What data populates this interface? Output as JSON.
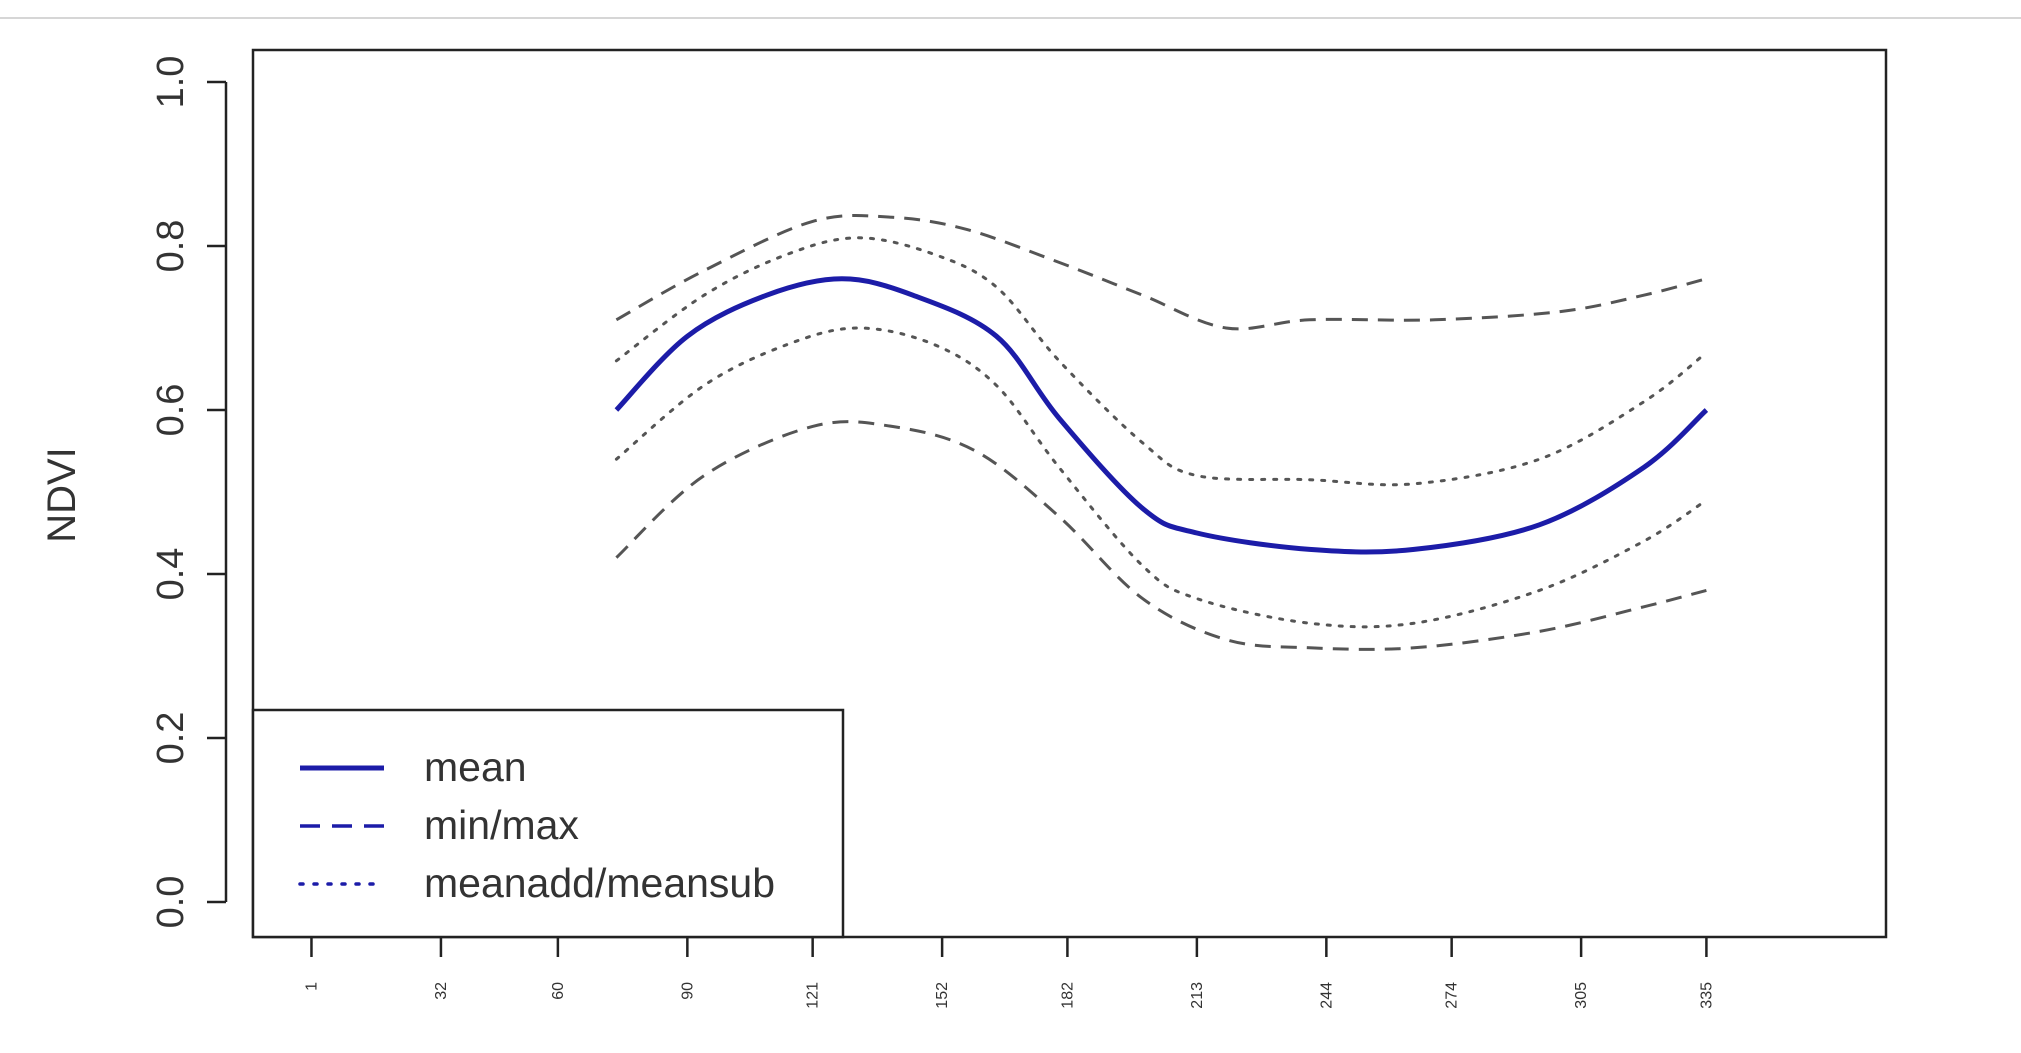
{
  "chart_data": {
    "type": "line",
    "ylabel": "NDVI",
    "xlabel": "",
    "title": "",
    "ylim": [
      0,
      1.0
    ],
    "y_ticks": [
      0.0,
      0.2,
      0.4,
      0.6,
      0.8,
      1.0
    ],
    "y_tick_labels": [
      "0.0",
      "0.2",
      "0.4",
      "0.6",
      "0.8",
      "1.0"
    ],
    "x_ticks": [
      1,
      32,
      60,
      91,
      121,
      152,
      182,
      213,
      244,
      274,
      305,
      335
    ],
    "x_tick_labels": [
      "1",
      "32",
      "60",
      "90",
      "121",
      "152",
      "182",
      "213",
      "244",
      "274",
      "305",
      "335"
    ],
    "xlim": [
      -13,
      378
    ],
    "grid": false,
    "legend_position": "bottom-left",
    "series": [
      {
        "name": "mean",
        "color": "#1c1ca8",
        "dash": "solid",
        "x": [
          74,
          91,
          110,
          128,
          145,
          165,
          180,
          200,
          213,
          240,
          265,
          295,
          320,
          335
        ],
        "y": [
          0.6,
          0.69,
          0.74,
          0.76,
          0.74,
          0.69,
          0.59,
          0.48,
          0.45,
          0.43,
          0.43,
          0.46,
          0.53,
          0.6
        ]
      },
      {
        "name": "max",
        "color": "#555555",
        "dash": "dashed",
        "x": [
          74,
          95,
          121,
          140,
          158,
          180,
          200,
          220,
          240,
          270,
          300,
          320,
          335
        ],
        "y": [
          0.71,
          0.77,
          0.83,
          0.835,
          0.82,
          0.78,
          0.74,
          0.7,
          0.71,
          0.71,
          0.72,
          0.74,
          0.76
        ]
      },
      {
        "name": "min",
        "color": "#555555",
        "dash": "dashed",
        "x": [
          74,
          95,
          121,
          140,
          160,
          180,
          200,
          220,
          240,
          265,
          295,
          320,
          335
        ],
        "y": [
          0.42,
          0.52,
          0.58,
          0.58,
          0.55,
          0.47,
          0.37,
          0.32,
          0.31,
          0.31,
          0.33,
          0.36,
          0.38
        ]
      },
      {
        "name": "meanadd",
        "color": "#555555",
        "dash": "dotted",
        "x": [
          74,
          95,
          115,
          132,
          150,
          165,
          180,
          200,
          213,
          240,
          265,
          295,
          320,
          335
        ],
        "y": [
          0.66,
          0.74,
          0.79,
          0.81,
          0.79,
          0.75,
          0.66,
          0.56,
          0.52,
          0.515,
          0.51,
          0.54,
          0.61,
          0.67
        ]
      },
      {
        "name": "meansub",
        "color": "#555555",
        "dash": "dotted",
        "x": [
          74,
          95,
          115,
          132,
          150,
          165,
          180,
          200,
          213,
          240,
          265,
          295,
          320,
          335
        ],
        "y": [
          0.54,
          0.63,
          0.68,
          0.7,
          0.68,
          0.63,
          0.53,
          0.41,
          0.37,
          0.34,
          0.34,
          0.38,
          0.44,
          0.49
        ]
      }
    ],
    "legend": [
      {
        "label": "mean",
        "dash": "solid",
        "color": "#1c1ca8"
      },
      {
        "label": "min/max",
        "dash": "dashed",
        "color": "#1c1ca8"
      },
      {
        "label": "meanadd/meansub",
        "dash": "dotted",
        "color": "#1c1ca8"
      }
    ]
  }
}
